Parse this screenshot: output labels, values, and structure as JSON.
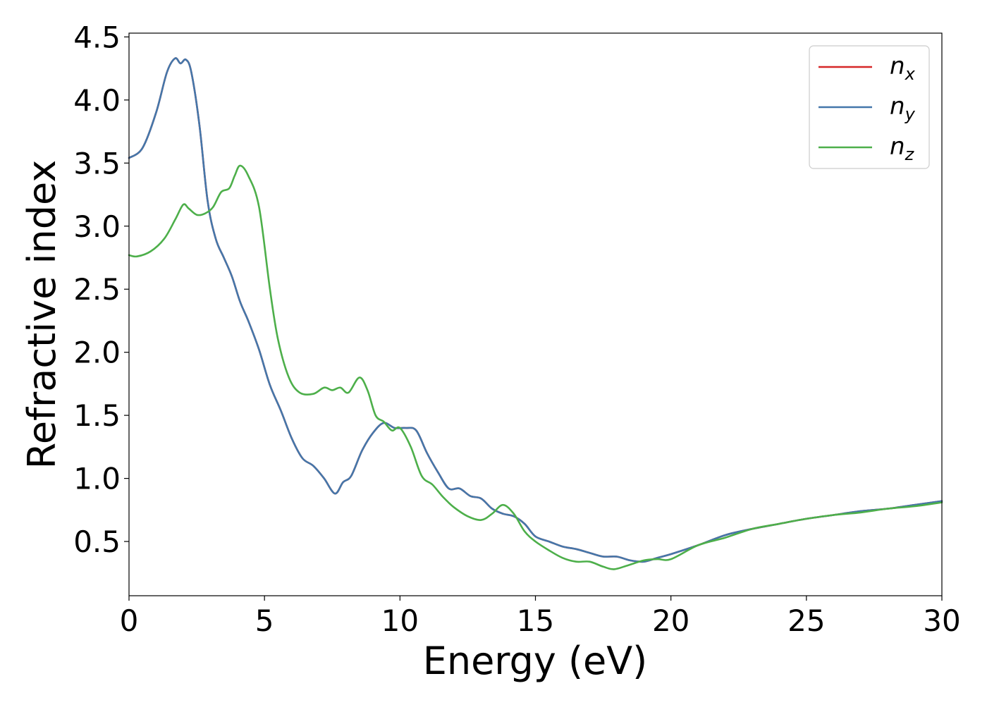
{
  "chart_data": {
    "type": "line",
    "title": "",
    "xlabel": "Energy (eV)",
    "ylabel": "Refractive index",
    "xlim": [
      0,
      30
    ],
    "ylim": [
      0.07,
      4.53
    ],
    "xticks": [
      0,
      5,
      10,
      15,
      20,
      25,
      30
    ],
    "yticks": [
      0.5,
      1.0,
      1.5,
      2.0,
      2.5,
      3.0,
      3.5,
      4.0,
      4.5
    ],
    "xtick_labels": [
      "0",
      "5",
      "10",
      "15",
      "20",
      "25",
      "30"
    ],
    "ytick_labels": [
      "0.5",
      "1.0",
      "1.5",
      "2.0",
      "2.5",
      "3.0",
      "3.5",
      "4.0",
      "4.5"
    ],
    "grid": false,
    "legend_position": "top-right",
    "series": [
      {
        "name": "n_x",
        "legend_base": "n",
        "legend_sub": "x",
        "color": "#d62728",
        "x": [
          0,
          0.5,
          1.0,
          1.4,
          1.7,
          1.9,
          2.1,
          2.3,
          2.6,
          2.9,
          3.2,
          3.5,
          3.8,
          4.1,
          4.4,
          4.8,
          5.2,
          5.6,
          6.0,
          6.4,
          6.8,
          7.2,
          7.6,
          7.9,
          8.2,
          8.6,
          9.0,
          9.4,
          9.8,
          10.2,
          10.6,
          11.0,
          11.4,
          11.8,
          12.2,
          12.6,
          13.0,
          13.4,
          13.8,
          14.2,
          14.6,
          15.0,
          15.5,
          16.0,
          16.5,
          17.0,
          17.5,
          18.0,
          18.5,
          19.0,
          19.5,
          20.0,
          21.0,
          22.0,
          23.0,
          24.0,
          25.0,
          26.0,
          27.0,
          28.0,
          29.0,
          30.0
        ],
        "y": [
          3.54,
          3.62,
          3.9,
          4.22,
          4.33,
          4.29,
          4.32,
          4.22,
          3.8,
          3.2,
          2.9,
          2.75,
          2.6,
          2.4,
          2.25,
          2.02,
          1.74,
          1.54,
          1.32,
          1.16,
          1.1,
          1.0,
          0.88,
          0.97,
          1.02,
          1.22,
          1.36,
          1.44,
          1.4,
          1.4,
          1.38,
          1.2,
          1.05,
          0.92,
          0.92,
          0.86,
          0.84,
          0.76,
          0.72,
          0.7,
          0.64,
          0.54,
          0.5,
          0.46,
          0.44,
          0.41,
          0.38,
          0.38,
          0.35,
          0.34,
          0.37,
          0.4,
          0.47,
          0.55,
          0.6,
          0.64,
          0.68,
          0.71,
          0.74,
          0.76,
          0.79,
          0.82
        ]
      },
      {
        "name": "n_y",
        "legend_base": "n",
        "legend_sub": "y",
        "color": "#4477aa",
        "x": [
          0,
          0.5,
          1.0,
          1.4,
          1.7,
          1.9,
          2.1,
          2.3,
          2.6,
          2.9,
          3.2,
          3.5,
          3.8,
          4.1,
          4.4,
          4.8,
          5.2,
          5.6,
          6.0,
          6.4,
          6.8,
          7.2,
          7.6,
          7.9,
          8.2,
          8.6,
          9.0,
          9.4,
          9.8,
          10.2,
          10.6,
          11.0,
          11.4,
          11.8,
          12.2,
          12.6,
          13.0,
          13.4,
          13.8,
          14.2,
          14.6,
          15.0,
          15.5,
          16.0,
          16.5,
          17.0,
          17.5,
          18.0,
          18.5,
          19.0,
          19.5,
          20.0,
          21.0,
          22.0,
          23.0,
          24.0,
          25.0,
          26.0,
          27.0,
          28.0,
          29.0,
          30.0
        ],
        "y": [
          3.54,
          3.62,
          3.9,
          4.22,
          4.33,
          4.29,
          4.32,
          4.22,
          3.8,
          3.2,
          2.9,
          2.75,
          2.6,
          2.4,
          2.25,
          2.02,
          1.74,
          1.54,
          1.32,
          1.16,
          1.1,
          1.0,
          0.88,
          0.97,
          1.02,
          1.22,
          1.36,
          1.44,
          1.4,
          1.4,
          1.38,
          1.2,
          1.05,
          0.92,
          0.92,
          0.86,
          0.84,
          0.76,
          0.72,
          0.7,
          0.64,
          0.54,
          0.5,
          0.46,
          0.44,
          0.41,
          0.38,
          0.38,
          0.35,
          0.34,
          0.37,
          0.4,
          0.47,
          0.55,
          0.6,
          0.64,
          0.68,
          0.71,
          0.74,
          0.76,
          0.79,
          0.82
        ]
      },
      {
        "name": "n_z",
        "legend_base": "n",
        "legend_sub": "z",
        "color": "#4daf4a",
        "x": [
          0,
          0.3,
          0.8,
          1.3,
          1.7,
          2.0,
          2.2,
          2.5,
          2.8,
          3.1,
          3.4,
          3.7,
          3.9,
          4.1,
          4.4,
          4.8,
          5.2,
          5.5,
          5.9,
          6.3,
          6.8,
          7.2,
          7.5,
          7.8,
          8.1,
          8.5,
          8.8,
          9.1,
          9.4,
          9.7,
          10.0,
          10.4,
          10.8,
          11.2,
          11.6,
          12.0,
          12.5,
          13.0,
          13.4,
          13.8,
          14.2,
          14.6,
          15.0,
          15.5,
          16.0,
          16.5,
          17.0,
          17.5,
          17.9,
          18.4,
          19.0,
          19.5,
          20.0,
          21.0,
          22.0,
          23.0,
          24.0,
          25.0,
          26.0,
          27.0,
          28.0,
          29.0,
          30.0
        ],
        "y": [
          2.77,
          2.76,
          2.8,
          2.9,
          3.05,
          3.17,
          3.14,
          3.09,
          3.1,
          3.15,
          3.27,
          3.3,
          3.4,
          3.48,
          3.4,
          3.15,
          2.5,
          2.1,
          1.8,
          1.68,
          1.67,
          1.72,
          1.7,
          1.72,
          1.68,
          1.8,
          1.7,
          1.5,
          1.45,
          1.38,
          1.4,
          1.25,
          1.02,
          0.95,
          0.85,
          0.77,
          0.7,
          0.67,
          0.72,
          0.79,
          0.72,
          0.58,
          0.5,
          0.43,
          0.37,
          0.34,
          0.34,
          0.3,
          0.28,
          0.31,
          0.35,
          0.36,
          0.36,
          0.47,
          0.53,
          0.6,
          0.64,
          0.68,
          0.71,
          0.73,
          0.76,
          0.78,
          0.81
        ]
      }
    ]
  }
}
